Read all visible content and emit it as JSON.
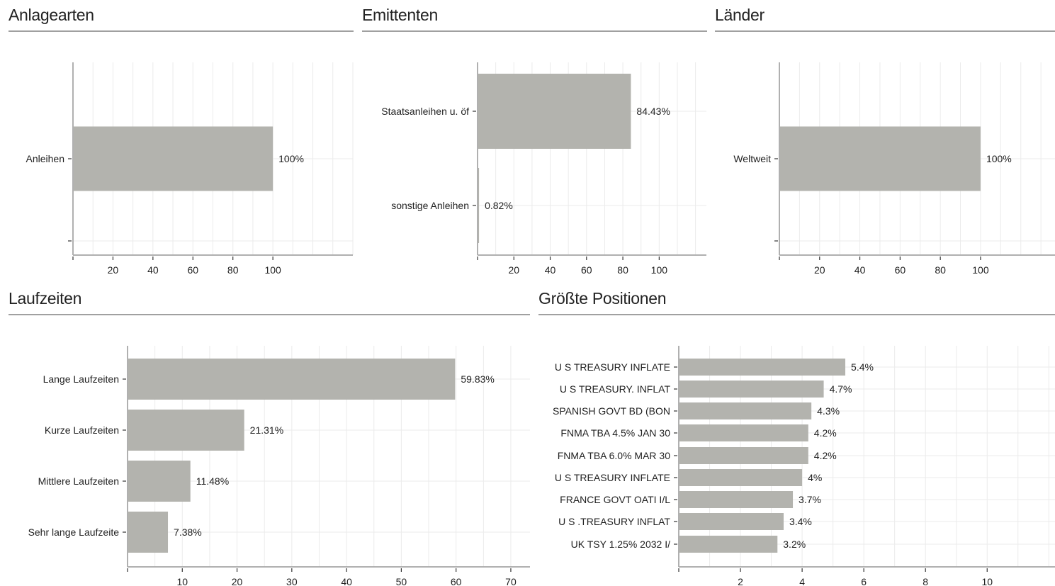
{
  "colors": {
    "bar": "#b3b3ae",
    "grid": "#ebebeb",
    "axis": "#b0b0b0",
    "rule": "#a0a0a0"
  },
  "panels": {
    "anlagearten": {
      "title": "Anlagearten"
    },
    "emittenten": {
      "title": "Emittenten"
    },
    "laender": {
      "title": "Länder"
    },
    "laufzeiten": {
      "title": "Laufzeiten"
    },
    "positionen": {
      "title": "Größte Positionen"
    }
  },
  "chart_data": [
    {
      "type": "bar",
      "orientation": "horizontal",
      "title": "Anlagearten",
      "categories": [
        "Anleihen"
      ],
      "values": [
        100
      ],
      "labels": [
        "100%"
      ],
      "xlim": [
        0,
        140
      ],
      "xticks": [
        20,
        40,
        60,
        80,
        100
      ],
      "grid": true
    },
    {
      "type": "bar",
      "orientation": "horizontal",
      "title": "Emittenten",
      "categories": [
        "Staatsanleihen u. öf",
        "sonstige Anleihen"
      ],
      "values": [
        84.43,
        0.82
      ],
      "labels": [
        "84.43%",
        "0.82%"
      ],
      "xlim": [
        0,
        126
      ],
      "xticks": [
        20,
        40,
        60,
        80,
        100
      ],
      "grid": true
    },
    {
      "type": "bar",
      "orientation": "horizontal",
      "title": "Länder",
      "categories": [
        "Weltweit"
      ],
      "values": [
        100
      ],
      "labels": [
        "100%"
      ],
      "xlim": [
        0,
        137
      ],
      "xticks": [
        20,
        40,
        60,
        80,
        100
      ],
      "grid": true
    },
    {
      "type": "bar",
      "orientation": "horizontal",
      "title": "Laufzeiten",
      "categories": [
        "Lange Laufzeiten",
        "Kurze Laufzeiten",
        "Mittlere Laufzeiten",
        "Sehr lange Laufzeite"
      ],
      "values": [
        59.83,
        21.31,
        11.48,
        7.38
      ],
      "labels": [
        "59.83%",
        "21.31%",
        "11.48%",
        "7.38%"
      ],
      "xlim": [
        0,
        73.5
      ],
      "xticks": [
        10,
        20,
        30,
        40,
        50,
        60,
        70
      ],
      "grid": true
    },
    {
      "type": "bar",
      "orientation": "horizontal",
      "title": "Größte Positionen",
      "categories": [
        "U S TREASURY INFLATE",
        "U S TREASURY. INFLAT",
        "SPANISH GOVT BD (BON",
        "FNMA TBA 4.5% JAN 30",
        "FNMA TBA 6.0% MAR 30",
        "U S TREASURY INFLATE",
        "FRANCE GOVT OATI I/L",
        "U S .TREASURY INFLAT",
        "UK TSY 1.25% 2032 I/"
      ],
      "values": [
        5.4,
        4.7,
        4.3,
        4.2,
        4.2,
        4.0,
        3.7,
        3.4,
        3.2
      ],
      "labels": [
        "5.4%",
        "4.7%",
        "4.3%",
        "4.2%",
        "4.2%",
        "4%",
        "3.7%",
        "3.4%",
        "3.2%"
      ],
      "xlim": [
        0,
        12.2
      ],
      "xticks": [
        2,
        4,
        6,
        8,
        10
      ],
      "grid": true
    }
  ]
}
